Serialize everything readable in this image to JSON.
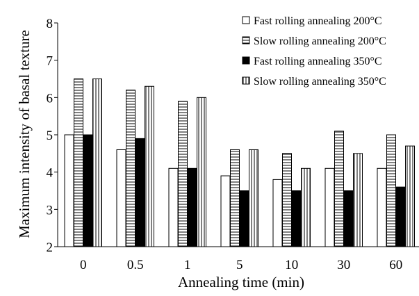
{
  "chart_data": {
    "type": "bar",
    "title": "",
    "xlabel": "Annealing time (min)",
    "ylabel": "Maximum intensity of basal texture",
    "ylim": [
      2,
      8
    ],
    "yticks": [
      2,
      3,
      4,
      5,
      6,
      7,
      8
    ],
    "grid": false,
    "legend_position": "top-right",
    "categories": [
      "0",
      "0.5",
      "1",
      "5",
      "10",
      "30",
      "60"
    ],
    "series": [
      {
        "name": "Fast rolling annealing 200°C",
        "pattern": "white",
        "values": [
          5.0,
          4.6,
          4.1,
          3.9,
          3.8,
          4.1,
          4.1
        ]
      },
      {
        "name": "Slow rolling annealing 200°C",
        "pattern": "horizontal-lines",
        "values": [
          6.5,
          6.2,
          5.9,
          4.6,
          4.5,
          5.1,
          5.0
        ]
      },
      {
        "name": "Fast rolling annealing 350°C",
        "pattern": "solid-black",
        "values": [
          5.0,
          4.9,
          4.1,
          3.5,
          3.5,
          3.5,
          3.6
        ]
      },
      {
        "name": "Slow rolling annealing 350°C",
        "pattern": "vertical-lines",
        "values": [
          6.5,
          6.3,
          6.0,
          4.6,
          4.1,
          4.5,
          4.7
        ]
      }
    ]
  }
}
